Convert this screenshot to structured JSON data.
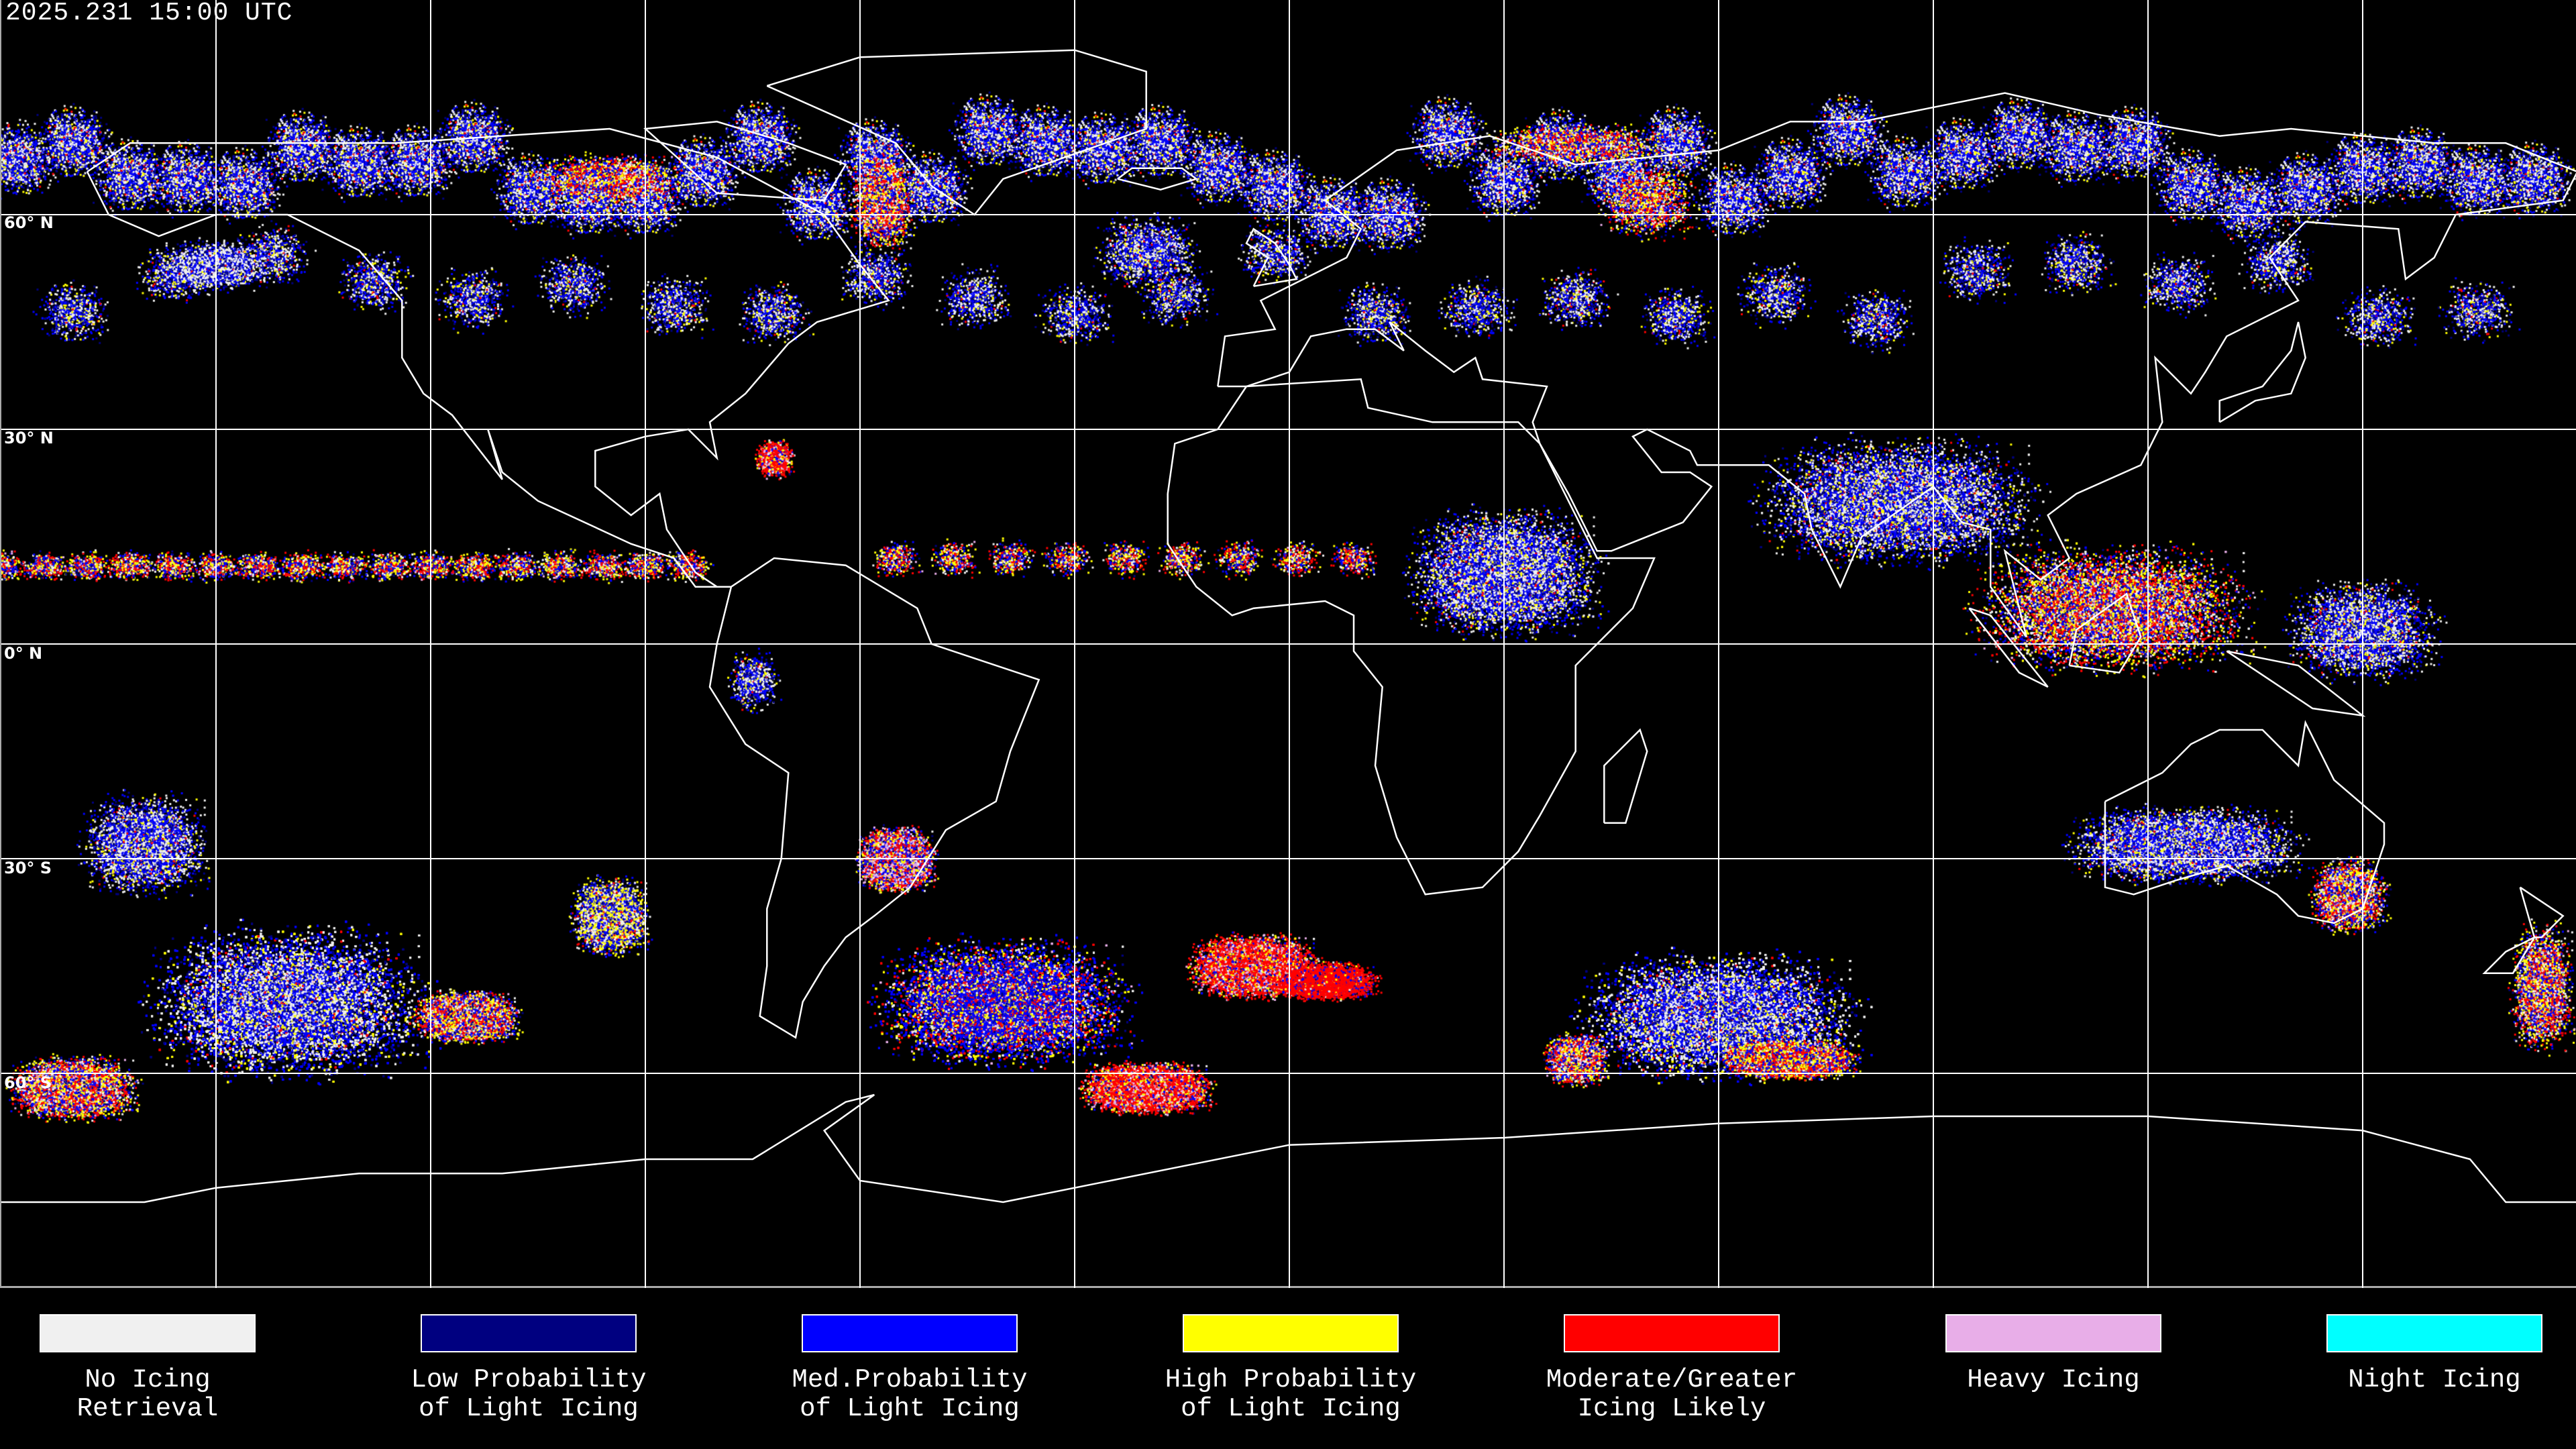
{
  "header": {
    "timestamp": "2025.231 15:00 UTC"
  },
  "map": {
    "projection": "equirectangular",
    "lat_labels": [
      "60° N",
      "30° N",
      "0° N",
      "30° S",
      "60° S"
    ],
    "background": "#000000",
    "coastline_color": "#ffffff",
    "grid_color": "#ffffff"
  },
  "legend": {
    "items": [
      {
        "line1": "No Icing",
        "line2": "Retrieval",
        "color": "#f0f0f0"
      },
      {
        "line1": "Low Probability",
        "line2": "of Light Icing",
        "color": "#000080"
      },
      {
        "line1": "Med.Probability",
        "line2": "of Light Icing",
        "color": "#0000ff"
      },
      {
        "line1": "High Probability",
        "line2": "of Light Icing",
        "color": "#ffff00"
      },
      {
        "line1": "Moderate/Greater",
        "line2": "Icing Likely",
        "color": "#ff0000"
      },
      {
        "line1": "Heavy Icing",
        "line2": "",
        "color": "#e8aee8"
      },
      {
        "line1": "Night Icing",
        "line2": "",
        "color": "#00ffff"
      }
    ]
  }
}
